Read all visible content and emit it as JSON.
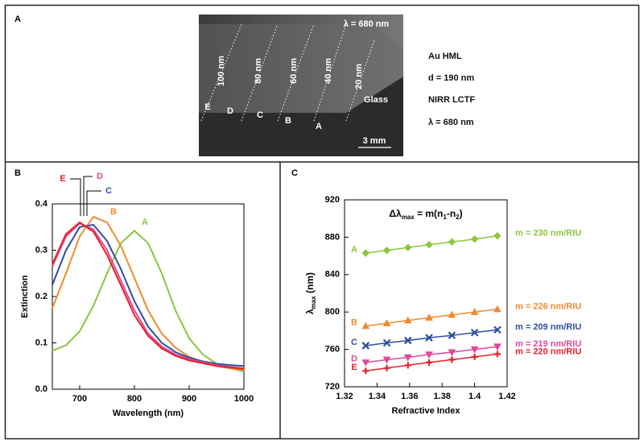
{
  "panel_labels": [
    "A",
    "B",
    "C"
  ],
  "panel_a": {
    "image_labels": [
      "λ = 680 nm",
      "100 nm",
      "80 nm",
      "60 nm",
      "40 nm",
      "20 nm",
      "Glass",
      "E",
      "D",
      "C",
      "B",
      "A",
      "3 mm"
    ],
    "description": [
      "Au HML",
      "d = 190 nm",
      "NIRR LCTF",
      "λ = 680 nm"
    ]
  },
  "chart_data": [
    {
      "type": "line",
      "xlabel": "Wavelength (nm)",
      "ylabel": "Extinction",
      "x": [
        650,
        675,
        700,
        725,
        750,
        775,
        800,
        825,
        850,
        875,
        900,
        925,
        950,
        975,
        1000
      ],
      "xlim": [
        650,
        1000
      ],
      "xticks": [
        700,
        800,
        900,
        1000
      ],
      "ylim": [
        0,
        0.4
      ],
      "yticks": [
        {
          "value": 0,
          "label": "0.0"
        },
        0.1,
        0.2,
        0.3,
        0.4
      ],
      "series": [
        {
          "name": "A",
          "color": "#8cc63f",
          "values": [
            0.083,
            0.095,
            0.125,
            0.18,
            0.25,
            0.315,
            0.342,
            0.315,
            0.25,
            0.17,
            0.11,
            0.075,
            0.055,
            0.045,
            0.038
          ]
        },
        {
          "name": "B",
          "color": "#f08a30",
          "values": [
            0.175,
            0.25,
            0.33,
            0.372,
            0.36,
            0.31,
            0.24,
            0.17,
            0.12,
            0.09,
            0.07,
            0.058,
            0.05,
            0.045,
            0.042
          ]
        },
        {
          "name": "C",
          "color": "#2e4fa0",
          "values": [
            0.225,
            0.3,
            0.35,
            0.355,
            0.32,
            0.26,
            0.19,
            0.135,
            0.1,
            0.08,
            0.068,
            0.06,
            0.055,
            0.052,
            0.05
          ]
        },
        {
          "name": "D",
          "color": "#e0489a",
          "values": [
            0.265,
            0.33,
            0.358,
            0.345,
            0.3,
            0.235,
            0.17,
            0.12,
            0.092,
            0.075,
            0.065,
            0.058,
            0.052,
            0.048,
            0.045
          ]
        },
        {
          "name": "E",
          "color": "#e8202a",
          "values": [
            0.27,
            0.335,
            0.36,
            0.34,
            0.29,
            0.225,
            0.16,
            0.115,
            0.088,
            0.072,
            0.062,
            0.056,
            0.05,
            0.047,
            0.044
          ]
        }
      ]
    },
    {
      "type": "line",
      "annotation": [
        "Δλ",
        "max",
        " = m(n",
        "1",
        "-n",
        "2",
        ")"
      ],
      "xlabel": "Refractive Index",
      "ylabel": [
        "λ",
        "max",
        " (nm)"
      ],
      "x": [
        1.333,
        1.346,
        1.359,
        1.372,
        1.386,
        1.4,
        1.414
      ],
      "xlim": [
        1.32,
        1.42
      ],
      "xticks": [
        1.32,
        1.34,
        1.36,
        1.38,
        1.4,
        1.42
      ],
      "ylim": [
        720,
        920
      ],
      "yticks": [
        720,
        760,
        800,
        840,
        880,
        920
      ],
      "series": [
        {
          "name": "A",
          "label": "m = 230 nm/RIU",
          "color": "#8cc63f",
          "marker": "diamond",
          "values": [
            863,
            866,
            869,
            872,
            875,
            878,
            881.5
          ]
        },
        {
          "name": "B",
          "label": "m = 226 nm/RIU",
          "color": "#f08a30",
          "marker": "triangle-up",
          "values": [
            785,
            788,
            791,
            794,
            797,
            800,
            803
          ]
        },
        {
          "name": "C",
          "label": "m = 209 nm/RIU",
          "color": "#2e4fa0",
          "marker": "x",
          "values": [
            764,
            767,
            769.5,
            772.5,
            775,
            778,
            781
          ]
        },
        {
          "name": "D",
          "label": "m = 219 nm/RIU",
          "color": "#e0489a",
          "marker": "triangle-down",
          "values": [
            746,
            749,
            751.5,
            754.5,
            757,
            760,
            763
          ]
        },
        {
          "name": "E",
          "label": "m = 220 nm/RIU",
          "color": "#e8202a",
          "marker": "plus",
          "values": [
            737,
            740,
            743,
            746,
            749,
            752,
            755
          ]
        }
      ]
    }
  ]
}
